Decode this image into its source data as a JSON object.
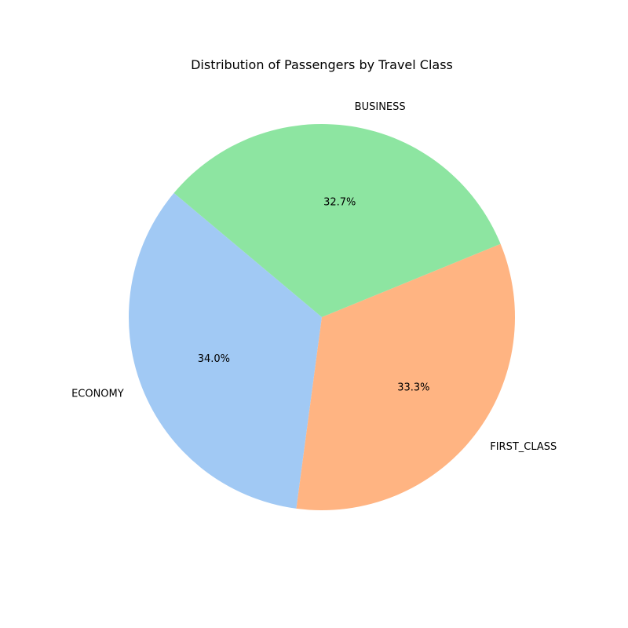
{
  "chart_data": {
    "type": "pie",
    "title": "Distribution of Passengers by Travel Class",
    "slices": [
      {
        "label": "ECONOMY",
        "value": 34.0,
        "pct_label": "34.0%",
        "color": "#a1c9f4"
      },
      {
        "label": "FIRST_CLASS",
        "value": 33.3,
        "pct_label": "33.3%",
        "color": "#ffb482"
      },
      {
        "label": "BUSINESS",
        "value": 32.7,
        "pct_label": "32.7%",
        "color": "#8de5a1"
      }
    ],
    "legend": "none"
  }
}
